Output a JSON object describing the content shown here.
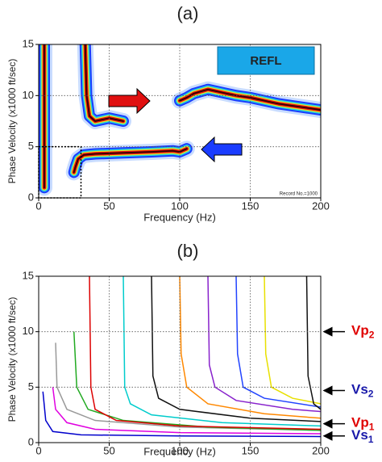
{
  "chart_data": [
    {
      "type": "heatmap",
      "title": "(a)",
      "x_label": "Frequency (Hz)",
      "y_label": "Phase Velocity (x1000 ft/sec)",
      "xlim": [
        0,
        200
      ],
      "ylim": [
        0,
        15
      ],
      "xticks": [
        0,
        50,
        100,
        150,
        200
      ],
      "yticks": [
        0,
        5,
        10,
        15
      ],
      "grid": true,
      "annotations": [
        "REFL",
        "Record No.=1000"
      ],
      "series": [
        {
          "x": [
            4,
            4
          ],
          "values": [
            1,
            15
          ]
        },
        {
          "x": [
            25,
            26,
            28,
            32,
            40,
            60,
            80,
            95,
            100,
            105
          ],
          "values": [
            2.5,
            3,
            3.8,
            4.2,
            4.3,
            4.4,
            4.5,
            4.6,
            4.5,
            4.8
          ]
        },
        {
          "x": [
            100,
            105,
            110,
            120,
            130,
            140,
            150,
            160,
            170,
            180,
            190,
            200
          ],
          "values": [
            9.5,
            9.8,
            10.2,
            10.6,
            10.3,
            10,
            9.8,
            9.5,
            9.2,
            9,
            8.8,
            8.6
          ]
        },
        {
          "x": [
            33,
            34,
            36,
            40,
            50,
            60
          ],
          "values": [
            15,
            10,
            8,
            7.5,
            7.8,
            7.5
          ]
        }
      ]
    },
    {
      "type": "line",
      "title": "(b)",
      "x_label": "Frequency (Hz)",
      "y_label": "Phase Velocity (x1000 ft/sec)",
      "xlim": [
        0,
        200
      ],
      "ylim": [
        0,
        15
      ],
      "xticks": [
        0,
        50,
        100,
        150,
        200
      ],
      "yticks": [
        0,
        5,
        10,
        15
      ],
      "grid": true,
      "markers": [
        {
          "text": "Vp",
          "sub": "2",
          "value": 10,
          "color": "#e00000"
        },
        {
          "text": "Vs",
          "sub": "2",
          "value": 4.7,
          "color": "#1a1aaa"
        },
        {
          "text": "Vp",
          "sub": "1",
          "value": 1.7,
          "color": "#e00000"
        },
        {
          "text": "Vs",
          "sub": "1",
          "value": 0.6,
          "color": "#1a1aaa"
        }
      ],
      "series": [
        {
          "color": "#0000cc",
          "x": [
            3,
            5,
            10,
            30,
            100,
            200
          ],
          "values": [
            4.6,
            2,
            1,
            0.7,
            0.6,
            0.55
          ]
        },
        {
          "color": "#e000e0",
          "x": [
            10,
            12,
            20,
            40,
            100,
            200
          ],
          "values": [
            5,
            3,
            1.8,
            1.2,
            0.9,
            0.8
          ]
        },
        {
          "color": "#999999",
          "x": [
            12,
            13,
            20,
            40,
            100,
            200
          ],
          "values": [
            9,
            5,
            3,
            2,
            1.4,
            1.1
          ]
        },
        {
          "color": "#22aa22",
          "x": [
            25,
            27,
            35,
            60,
            120,
            200
          ],
          "values": [
            10,
            5,
            3,
            2,
            1.4,
            1.1
          ]
        },
        {
          "color": "#dd0000",
          "x": [
            36,
            37,
            40,
            55,
            100,
            200
          ],
          "values": [
            15,
            5,
            3,
            2,
            1.5,
            1.2
          ]
        },
        {
          "color": "#00cccc",
          "x": [
            60,
            61,
            65,
            80,
            130,
            200
          ],
          "values": [
            15,
            5,
            3.5,
            2.5,
            1.8,
            1.5
          ]
        },
        {
          "color": "#111111",
          "x": [
            80,
            81,
            85,
            100,
            150,
            200
          ],
          "values": [
            15,
            6,
            4,
            3,
            2.2,
            1.9
          ]
        },
        {
          "color": "#ff8800",
          "x": [
            100,
            101,
            105,
            120,
            160,
            200
          ],
          "values": [
            15,
            8,
            5,
            3.5,
            2.6,
            2.2
          ]
        },
        {
          "color": "#8822cc",
          "x": [
            120,
            121,
            125,
            140,
            180,
            200
          ],
          "values": [
            15,
            7,
            5,
            3.8,
            3,
            2.8
          ]
        },
        {
          "color": "#2244ff",
          "x": [
            140,
            141,
            145,
            160,
            200
          ],
          "values": [
            15,
            8,
            5,
            4,
            3.2
          ]
        },
        {
          "color": "#e8e000",
          "x": [
            160,
            161,
            165,
            180,
            200
          ],
          "values": [
            15,
            8,
            5,
            4,
            3.5
          ]
        },
        {
          "color": "#111111",
          "x": [
            190,
            191,
            195,
            200
          ],
          "values": [
            15,
            6,
            3.5,
            3
          ]
        }
      ]
    }
  ]
}
